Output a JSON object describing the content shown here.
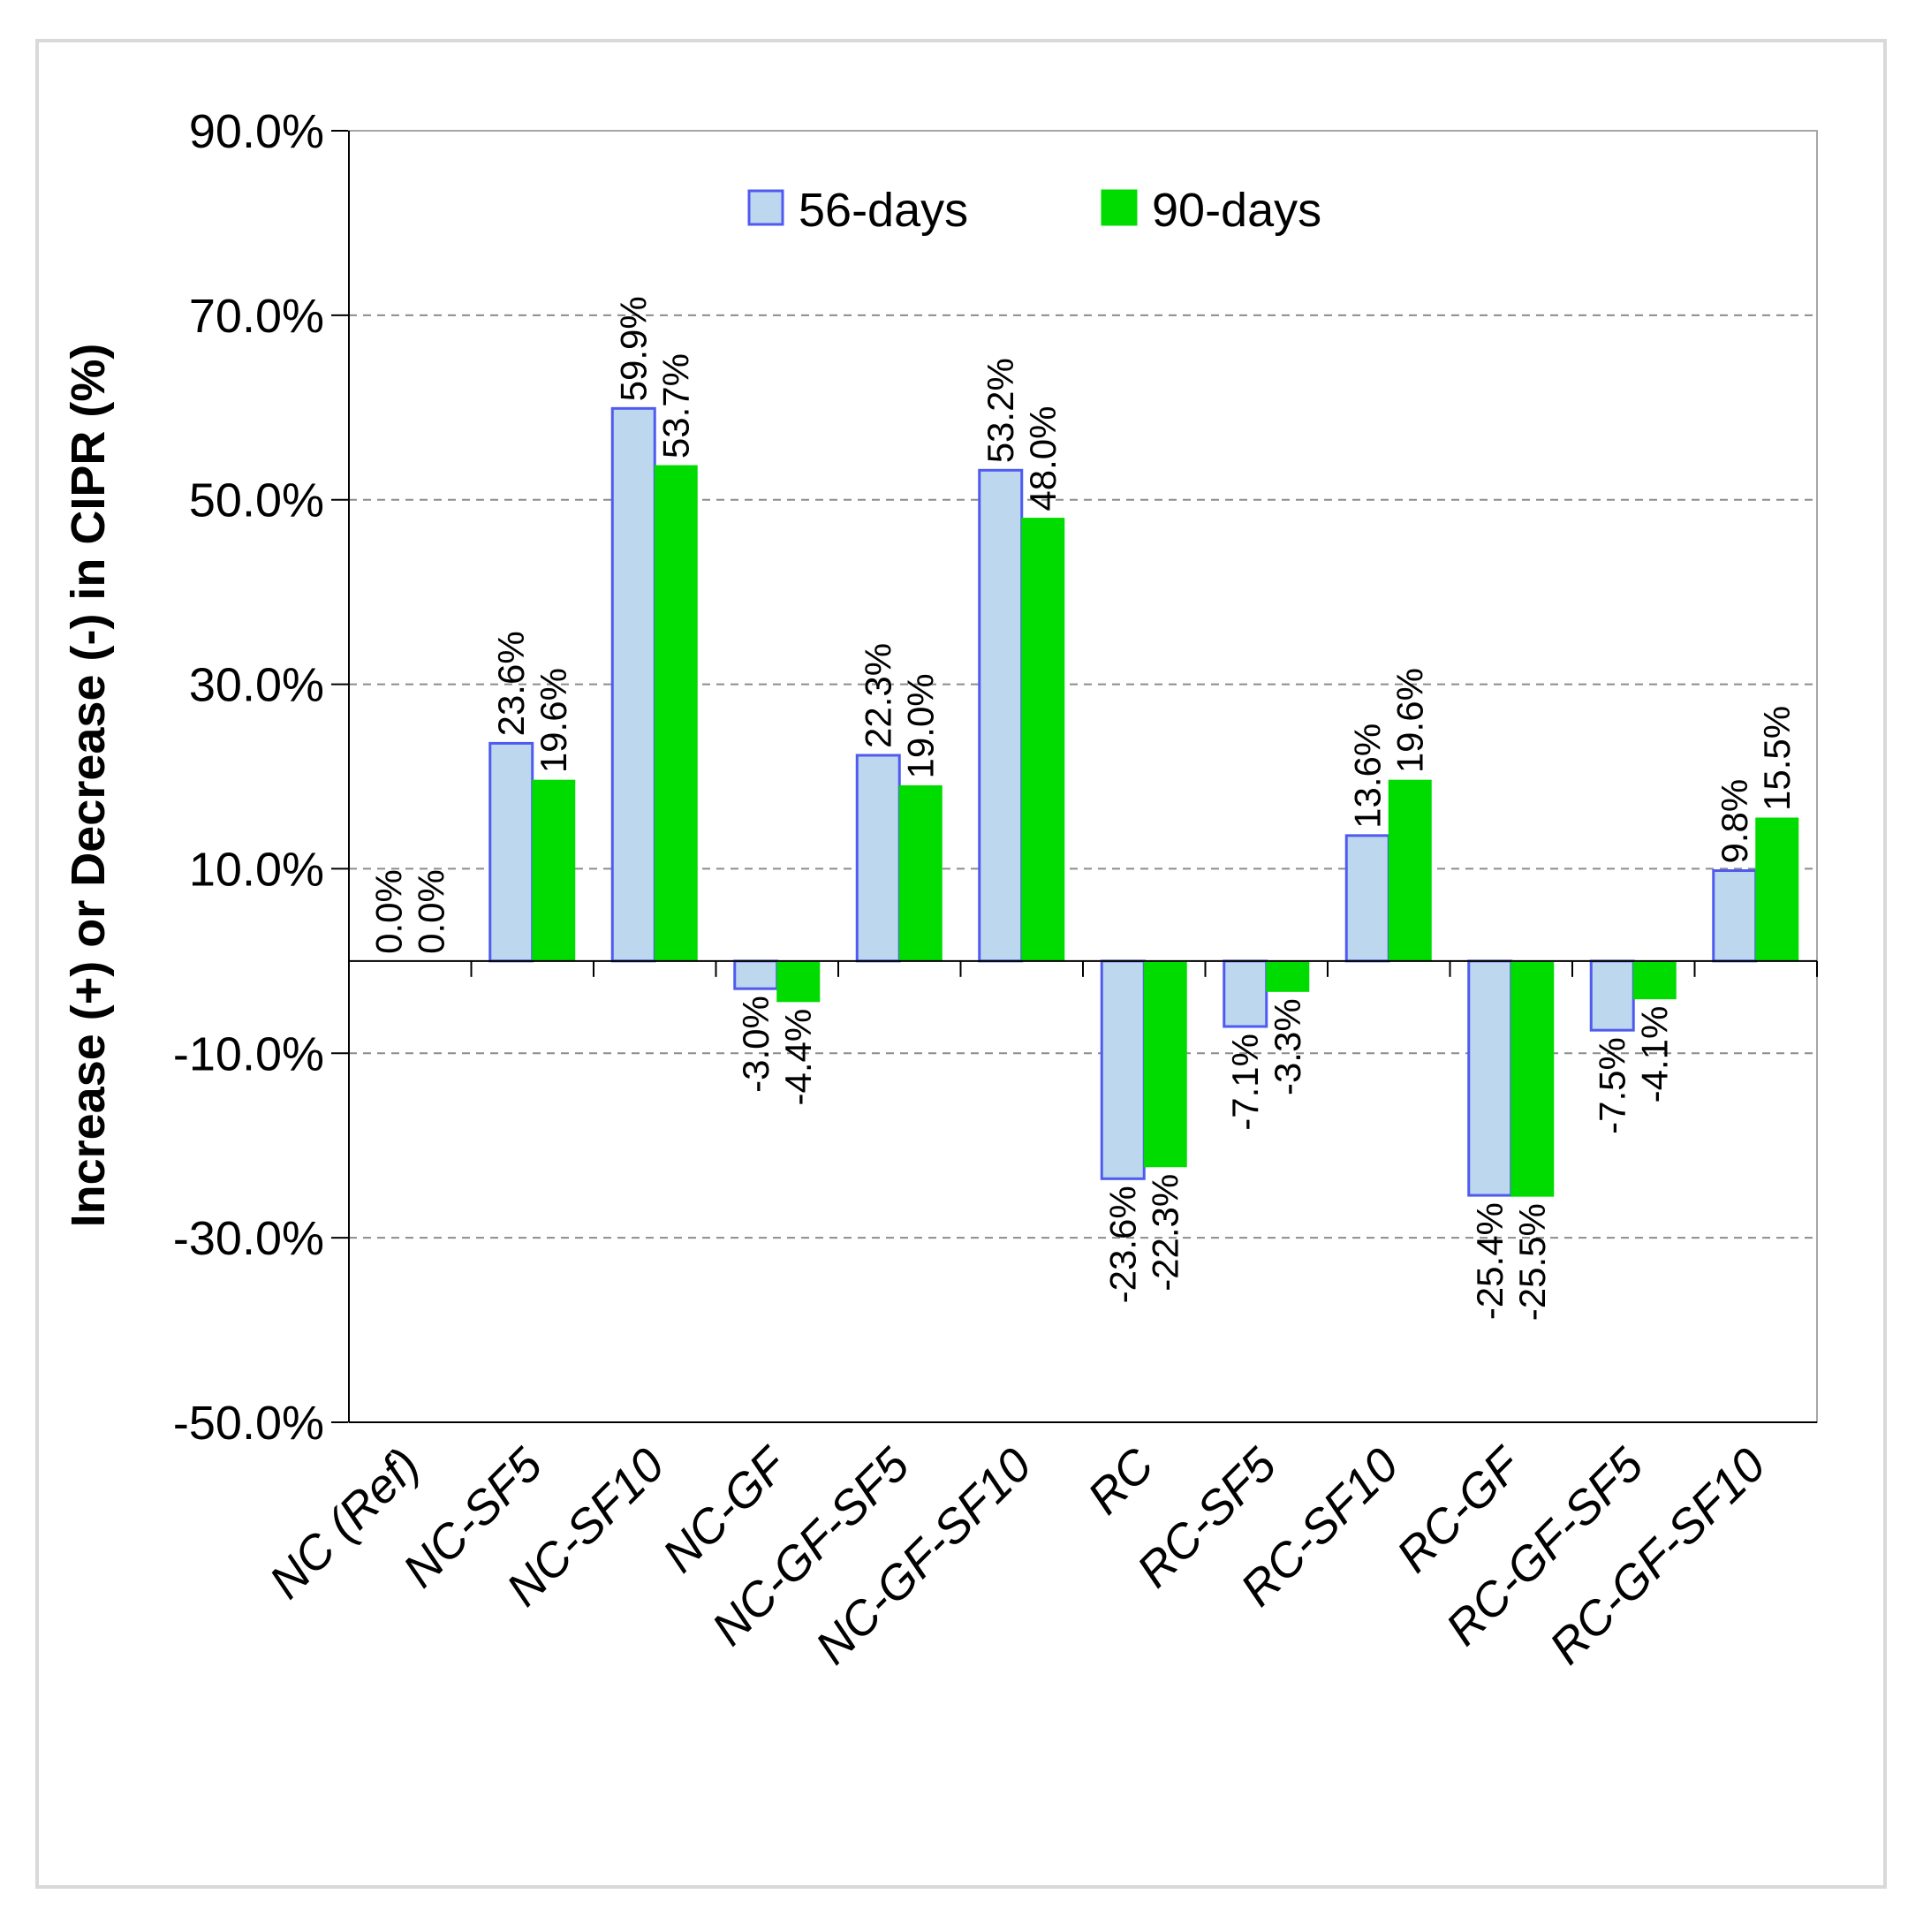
{
  "chart_data": {
    "type": "bar",
    "title": "",
    "xlabel": "",
    "ylabel": "Increase (+) or Decrease (-) in CIPR (%)",
    "ylim": [
      -50,
      90
    ],
    "yticks": [
      90,
      70,
      50,
      30,
      10,
      -10,
      -30,
      -50
    ],
    "ytick_labels": [
      "90.0%",
      "70.0%",
      "50.0%",
      "30.0%",
      "10.0%",
      "-10.0%",
      "-30.0%",
      "-50.0%"
    ],
    "grid": "horizontal dashed",
    "legend_position": "top-center",
    "categories": [
      "NC (Ref)",
      "NC-SF5",
      "NC-SF10",
      "NC-GF",
      "NC-GF-SF5",
      "NC-GF-SF10",
      "RC",
      "RC-SF5",
      "RC-SF10",
      "RC-GF",
      "RC-GF-SF5",
      "RC-GF-SF10"
    ],
    "series": [
      {
        "name": "56-days",
        "fill": "#bdd7ee",
        "stroke": "#4f5bf0",
        "values": [
          0.0,
          23.6,
          59.9,
          -3.0,
          22.3,
          53.2,
          -23.6,
          -7.1,
          13.6,
          -25.4,
          -7.5,
          9.8
        ],
        "labels": [
          "0.0%",
          "23.6%",
          "59.9%",
          "-3.0%",
          "22.3%",
          "53.2%",
          "-23.6%",
          "-7.1%",
          "13.6%",
          "-25.4%",
          "-7.5%",
          "9.8%"
        ]
      },
      {
        "name": "90-days",
        "fill": "#00dc00",
        "stroke": "#00dc00",
        "values": [
          0.0,
          19.6,
          53.7,
          -4.4,
          19.0,
          48.0,
          -22.3,
          -3.3,
          19.6,
          -25.5,
          -4.1,
          15.5
        ],
        "labels": [
          "0.0%",
          "19.6%",
          "53.7%",
          "-4.4%",
          "19.0%",
          "48.0%",
          "-22.3%",
          "-3.3%",
          "19.6%",
          "-25.5%",
          "-4.1%",
          "15.5%"
        ]
      }
    ]
  }
}
